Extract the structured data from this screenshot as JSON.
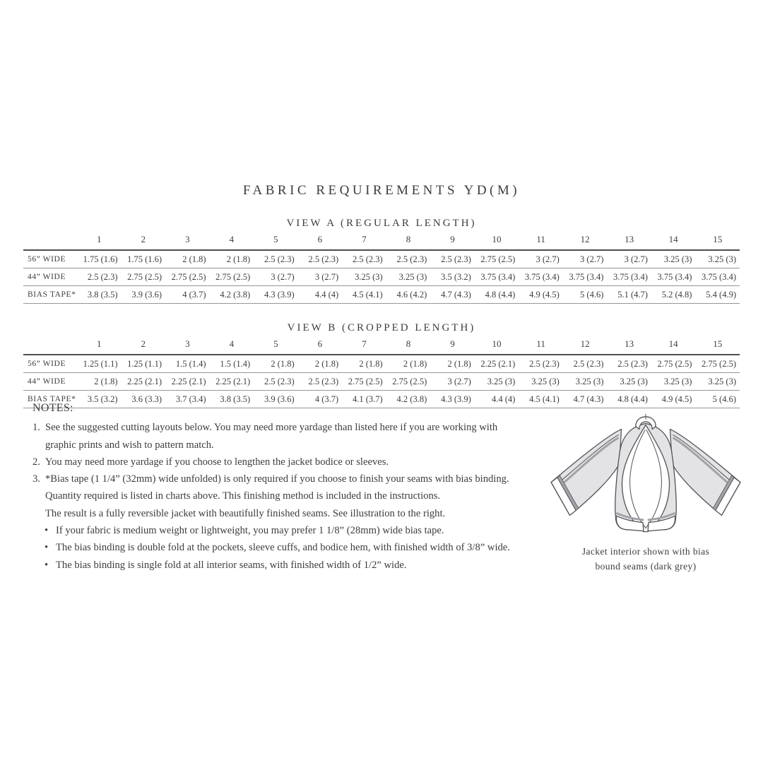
{
  "page": {
    "title": "FABRIC REQUIREMENTS YD(M)"
  },
  "tables": [
    {
      "subtitle": "VIEW A (REGULAR LENGTH)",
      "sizes": [
        "1",
        "2",
        "3",
        "4",
        "5",
        "6",
        "7",
        "8",
        "9",
        "10",
        "11",
        "12",
        "13",
        "14",
        "15"
      ],
      "rows": [
        {
          "label": "56” WIDE",
          "values": [
            "1.75 (1.6)",
            "1.75 (1.6)",
            "2 (1.8)",
            "2 (1.8)",
            "2.5 (2.3)",
            "2.5 (2.3)",
            "2.5 (2.3)",
            "2.5 (2.3)",
            "2.5 (2.3)",
            "2.75 (2.5)",
            "3 (2.7)",
            "3 (2.7)",
            "3 (2.7)",
            "3.25 (3)",
            "3.25 (3)"
          ]
        },
        {
          "label": "44” WIDE",
          "values": [
            "2.5 (2.3)",
            "2.75 (2.5)",
            "2.75 (2.5)",
            "2.75 (2.5)",
            "3 (2.7)",
            "3 (2.7)",
            "3.25 (3)",
            "3.25 (3)",
            "3.5 (3.2)",
            "3.75 (3.4)",
            "3.75 (3.4)",
            "3.75 (3.4)",
            "3.75 (3.4)",
            "3.75 (3.4)",
            "3.75 (3.4)"
          ]
        },
        {
          "label": "BIAS TAPE*",
          "values": [
            "3.8 (3.5)",
            "3.9 (3.6)",
            "4 (3.7)",
            "4.2 (3.8)",
            "4.3 (3.9)",
            "4.4 (4)",
            "4.5 (4.1)",
            "4.6 (4.2)",
            "4.7 (4.3)",
            "4.8 (4.4)",
            "4.9 (4.5)",
            "5 (4.6)",
            "5.1 (4.7)",
            "5.2 (4.8)",
            "5.4 (4.9)"
          ]
        }
      ]
    },
    {
      "subtitle": "VIEW B (CROPPED LENGTH)",
      "sizes": [
        "1",
        "2",
        "3",
        "4",
        "5",
        "6",
        "7",
        "8",
        "9",
        "10",
        "11",
        "12",
        "13",
        "14",
        "15"
      ],
      "rows": [
        {
          "label": "56” WIDE",
          "values": [
            "1.25 (1.1)",
            "1.25 (1.1)",
            "1.5 (1.4)",
            "1.5 (1.4)",
            "2 (1.8)",
            "2 (1.8)",
            "2 (1.8)",
            "2 (1.8)",
            "2 (1.8)",
            "2.25 (2.1)",
            "2.5 (2.3)",
            "2.5 (2.3)",
            "2.5 (2.3)",
            "2.75 (2.5)",
            "2.75 (2.5)"
          ]
        },
        {
          "label": "44” WIDE",
          "values": [
            "2 (1.8)",
            "2.25 (2.1)",
            "2.25 (2.1)",
            "2.25 (2.1)",
            "2.5 (2.3)",
            "2.5 (2.3)",
            "2.75 (2.5)",
            "2.75 (2.5)",
            "3 (2.7)",
            "3.25 (3)",
            "3.25 (3)",
            "3.25 (3)",
            "3.25 (3)",
            "3.25 (3)",
            "3.25 (3)"
          ]
        },
        {
          "label": "BIAS TAPE*",
          "values": [
            "3.5 (3.2)",
            "3.6 (3.3)",
            "3.7 (3.4)",
            "3.8 (3.5)",
            "3.9 (3.6)",
            "4 (3.7)",
            "4.1 (3.7)",
            "4.2 (3.8)",
            "4.3 (3.9)",
            "4.4 (4)",
            "4.5 (4.1)",
            "4.7 (4.3)",
            "4.8 (4.4)",
            "4.9 (4.5)",
            "5 (4.6)"
          ]
        }
      ]
    }
  ],
  "notes": {
    "heading": "NOTES:",
    "numbered": [
      {
        "num": "1.",
        "lines": [
          "See the suggested cutting layouts below. You may need more yardage than listed here if you are working with",
          "graphic prints and wish to pattern match."
        ]
      },
      {
        "num": "2.",
        "lines": [
          "You may need more yardage if you choose to lengthen the jacket bodice or sleeves."
        ]
      },
      {
        "num": "3.",
        "lines": [
          "*Bias tape (1 1/4” (32mm) wide unfolded) is only required if you choose to finish your seams with bias binding.",
          "Quantity required is listed in charts above. This finishing method is included in the instructions.",
          "The result is a fully reversible jacket with beautifully finished seams. See illustration to the right."
        ]
      }
    ],
    "bullet_glyph": "•",
    "bullets": [
      "If your fabric is medium weight or lightweight, you may prefer 1 1/8” (28mm) wide bias tape.",
      "The bias binding is double fold at the pockets, sleeve cuffs, and bodice hem, with finished width of 3/8” wide.",
      "The bias binding is single fold at all interior seams, with finished width of 1/2” wide."
    ]
  },
  "illustration": {
    "caption": [
      "Jacket interior shown with bias",
      "bound seams (dark grey)"
    ],
    "colors": {
      "text": "#3d3d40",
      "rule_heavy": "#4e4e52",
      "rule_light": "#96969a",
      "jacket_fill": "#e3e3e6",
      "jacket_outline": "#55555a",
      "seam_grey": "#a2a2a8",
      "lining": "#ffffff"
    }
  }
}
